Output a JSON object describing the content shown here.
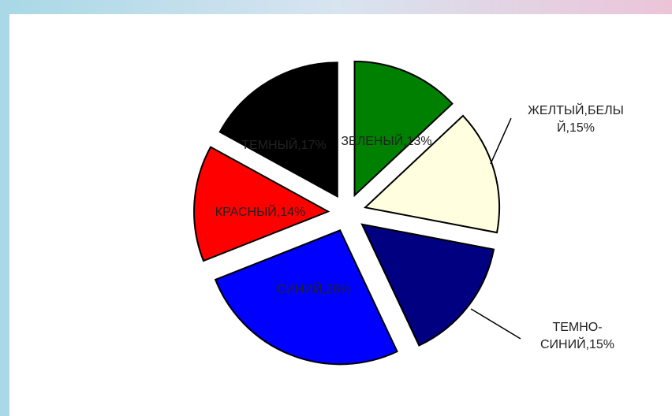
{
  "chart_data": {
    "type": "pie",
    "values": [
      13,
      15,
      15,
      26,
      14,
      17
    ],
    "value_labels": [
      "ЗЕЛЕНЫЙ,13%",
      "ЖЕЛТЫЙ,БЕЛЫ\nЙ,15%",
      "ТЕМНО-\nСИНИЙ,15%",
      "СИНИЙ,26%",
      "КРАСНЫЙ,14%",
      "ТЕМНЫЙ,17%"
    ],
    "colors": [
      "#008000",
      "#ffffe0",
      "#000080",
      "#0000ff",
      "#ff0000",
      "#000000"
    ]
  }
}
